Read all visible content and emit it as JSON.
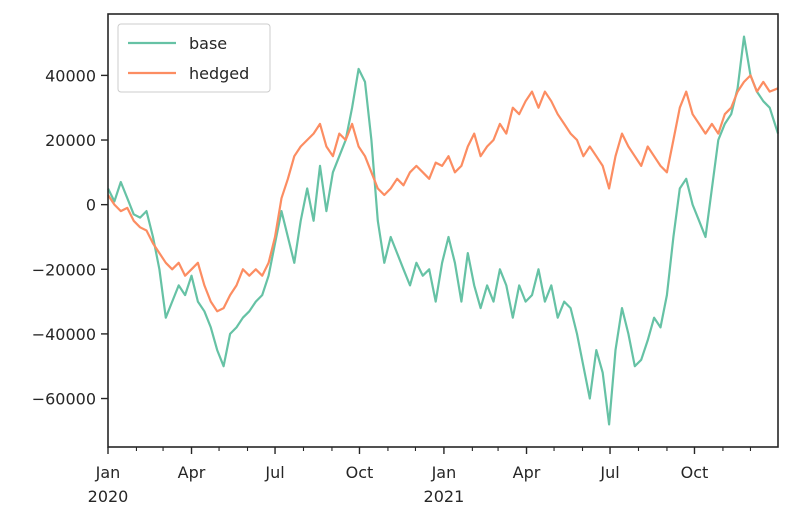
{
  "chart_data": {
    "type": "line",
    "title": "",
    "xlabel": "",
    "ylabel": "",
    "xlim": [
      "2020-01-01",
      "2021-12-31"
    ],
    "ylim": [
      -75000,
      59000
    ],
    "grid": false,
    "legend_position": "top-left",
    "x_ticks": [
      {
        "date": "2020-01-01",
        "label": "Jan",
        "sublabel": "2020"
      },
      {
        "date": "2020-04-01",
        "label": "Apr",
        "sublabel": ""
      },
      {
        "date": "2020-07-01",
        "label": "Jul",
        "sublabel": ""
      },
      {
        "date": "2020-10-01",
        "label": "Oct",
        "sublabel": ""
      },
      {
        "date": "2021-01-01",
        "label": "Jan",
        "sublabel": "2021"
      },
      {
        "date": "2021-04-01",
        "label": "Apr",
        "sublabel": ""
      },
      {
        "date": "2021-07-01",
        "label": "Jul",
        "sublabel": ""
      },
      {
        "date": "2021-10-01",
        "label": "Oct",
        "sublabel": ""
      }
    ],
    "minor_x_ticks": [
      "2020-02-01",
      "2020-03-01",
      "2020-05-01",
      "2020-06-01",
      "2020-08-01",
      "2020-09-01",
      "2020-11-01",
      "2020-12-01",
      "2021-02-01",
      "2021-03-01",
      "2021-05-01",
      "2021-06-01",
      "2021-08-01",
      "2021-09-01",
      "2021-11-01",
      "2021-12-01"
    ],
    "y_ticks": [
      {
        "value": -60000,
        "label": "−60000"
      },
      {
        "value": -40000,
        "label": "−40000"
      },
      {
        "value": -20000,
        "label": "−20000"
      },
      {
        "value": 0,
        "label": "0"
      },
      {
        "value": 20000,
        "label": "20000"
      },
      {
        "value": 40000,
        "label": "40000"
      }
    ],
    "series": [
      {
        "name": "base",
        "color": "#66c2a5",
        "x": [
          "2020-01-01",
          "2020-01-08",
          "2020-01-15",
          "2020-01-22",
          "2020-01-29",
          "2020-02-05",
          "2020-02-12",
          "2020-02-19",
          "2020-02-26",
          "2020-03-04",
          "2020-03-11",
          "2020-03-18",
          "2020-03-25",
          "2020-04-01",
          "2020-04-08",
          "2020-04-15",
          "2020-04-22",
          "2020-04-29",
          "2020-05-06",
          "2020-05-13",
          "2020-05-20",
          "2020-05-27",
          "2020-06-03",
          "2020-06-10",
          "2020-06-17",
          "2020-06-24",
          "2020-07-01",
          "2020-07-08",
          "2020-07-15",
          "2020-07-22",
          "2020-07-29",
          "2020-08-05",
          "2020-08-12",
          "2020-08-19",
          "2020-08-26",
          "2020-09-02",
          "2020-09-09",
          "2020-09-16",
          "2020-09-23",
          "2020-09-30",
          "2020-10-07",
          "2020-10-14",
          "2020-10-21",
          "2020-10-28",
          "2020-11-04",
          "2020-11-11",
          "2020-11-18",
          "2020-11-25",
          "2020-12-02",
          "2020-12-09",
          "2020-12-16",
          "2020-12-23",
          "2020-12-30",
          "2021-01-06",
          "2021-01-13",
          "2021-01-20",
          "2021-01-27",
          "2021-02-03",
          "2021-02-10",
          "2021-02-17",
          "2021-02-24",
          "2021-03-03",
          "2021-03-10",
          "2021-03-17",
          "2021-03-24",
          "2021-03-31",
          "2021-04-07",
          "2021-04-14",
          "2021-04-21",
          "2021-04-28",
          "2021-05-05",
          "2021-05-12",
          "2021-05-19",
          "2021-05-26",
          "2021-06-02",
          "2021-06-09",
          "2021-06-16",
          "2021-06-23",
          "2021-06-30",
          "2021-07-07",
          "2021-07-14",
          "2021-07-21",
          "2021-07-28",
          "2021-08-04",
          "2021-08-11",
          "2021-08-18",
          "2021-08-25",
          "2021-09-01",
          "2021-09-08",
          "2021-09-15",
          "2021-09-22",
          "2021-09-29",
          "2021-10-06",
          "2021-10-13",
          "2021-10-20",
          "2021-10-27",
          "2021-11-03",
          "2021-11-10",
          "2021-11-17",
          "2021-11-24",
          "2021-12-01",
          "2021-12-08",
          "2021-12-15",
          "2021-12-22",
          "2021-12-31"
        ],
        "values": [
          5000,
          1000,
          7000,
          2000,
          -3000,
          -4000,
          -2000,
          -10000,
          -20000,
          -35000,
          -30000,
          -25000,
          -28000,
          -22000,
          -30000,
          -33000,
          -38000,
          -45000,
          -50000,
          -40000,
          -38000,
          -35000,
          -33000,
          -30000,
          -28000,
          -22000,
          -12000,
          -2000,
          -10000,
          -18000,
          -5000,
          5000,
          -5000,
          12000,
          -2000,
          10000,
          15000,
          20000,
          30000,
          42000,
          38000,
          20000,
          -5000,
          -18000,
          -10000,
          -15000,
          -20000,
          -25000,
          -18000,
          -22000,
          -20000,
          -30000,
          -18000,
          -10000,
          -18000,
          -30000,
          -15000,
          -25000,
          -32000,
          -25000,
          -30000,
          -20000,
          -25000,
          -35000,
          -25000,
          -30000,
          -28000,
          -20000,
          -30000,
          -25000,
          -35000,
          -30000,
          -32000,
          -40000,
          -50000,
          -60000,
          -45000,
          -52000,
          -68000,
          -45000,
          -32000,
          -40000,
          -50000,
          -48000,
          -42000,
          -35000,
          -38000,
          -28000,
          -10000,
          5000,
          8000,
          0,
          -5000,
          -10000,
          5000,
          20000,
          25000,
          28000,
          36000,
          52000,
          40000,
          35000,
          32000,
          30000,
          22000
        ]
      },
      {
        "name": "hedged",
        "color": "#fc8d62",
        "x": [
          "2020-01-01",
          "2020-01-08",
          "2020-01-15",
          "2020-01-22",
          "2020-01-29",
          "2020-02-05",
          "2020-02-12",
          "2020-02-19",
          "2020-02-26",
          "2020-03-04",
          "2020-03-11",
          "2020-03-18",
          "2020-03-25",
          "2020-04-01",
          "2020-04-08",
          "2020-04-15",
          "2020-04-22",
          "2020-04-29",
          "2020-05-06",
          "2020-05-13",
          "2020-05-20",
          "2020-05-27",
          "2020-06-03",
          "2020-06-10",
          "2020-06-17",
          "2020-06-24",
          "2020-07-01",
          "2020-07-08",
          "2020-07-15",
          "2020-07-22",
          "2020-07-29",
          "2020-08-05",
          "2020-08-12",
          "2020-08-19",
          "2020-08-26",
          "2020-09-02",
          "2020-09-09",
          "2020-09-16",
          "2020-09-23",
          "2020-09-30",
          "2020-10-07",
          "2020-10-14",
          "2020-10-21",
          "2020-10-28",
          "2020-11-04",
          "2020-11-11",
          "2020-11-18",
          "2020-11-25",
          "2020-12-02",
          "2020-12-09",
          "2020-12-16",
          "2020-12-23",
          "2020-12-30",
          "2021-01-06",
          "2021-01-13",
          "2021-01-20",
          "2021-01-27",
          "2021-02-03",
          "2021-02-10",
          "2021-02-17",
          "2021-02-24",
          "2021-03-03",
          "2021-03-10",
          "2021-03-17",
          "2021-03-24",
          "2021-03-31",
          "2021-04-07",
          "2021-04-14",
          "2021-04-21",
          "2021-04-28",
          "2021-05-05",
          "2021-05-12",
          "2021-05-19",
          "2021-05-26",
          "2021-06-02",
          "2021-06-09",
          "2021-06-16",
          "2021-06-23",
          "2021-06-30",
          "2021-07-07",
          "2021-07-14",
          "2021-07-21",
          "2021-07-28",
          "2021-08-04",
          "2021-08-11",
          "2021-08-18",
          "2021-08-25",
          "2021-09-01",
          "2021-09-08",
          "2021-09-15",
          "2021-09-22",
          "2021-09-29",
          "2021-10-06",
          "2021-10-13",
          "2021-10-20",
          "2021-10-27",
          "2021-11-03",
          "2021-11-10",
          "2021-11-17",
          "2021-11-24",
          "2021-12-01",
          "2021-12-08",
          "2021-12-15",
          "2021-12-22",
          "2021-12-31"
        ],
        "values": [
          3000,
          0,
          -2000,
          -1000,
          -5000,
          -7000,
          -8000,
          -12000,
          -15000,
          -18000,
          -20000,
          -18000,
          -22000,
          -20000,
          -18000,
          -25000,
          -30000,
          -33000,
          -32000,
          -28000,
          -25000,
          -20000,
          -22000,
          -20000,
          -22000,
          -18000,
          -10000,
          2000,
          8000,
          15000,
          18000,
          20000,
          22000,
          25000,
          18000,
          15000,
          22000,
          20000,
          25000,
          18000,
          15000,
          10000,
          5000,
          3000,
          5000,
          8000,
          6000,
          10000,
          12000,
          10000,
          8000,
          13000,
          12000,
          15000,
          10000,
          12000,
          18000,
          22000,
          15000,
          18000,
          20000,
          25000,
          22000,
          30000,
          28000,
          32000,
          35000,
          30000,
          35000,
          32000,
          28000,
          25000,
          22000,
          20000,
          15000,
          18000,
          15000,
          12000,
          5000,
          15000,
          22000,
          18000,
          15000,
          12000,
          18000,
          15000,
          12000,
          10000,
          20000,
          30000,
          35000,
          28000,
          25000,
          22000,
          25000,
          22000,
          28000,
          30000,
          35000,
          38000,
          40000,
          35000,
          38000,
          35000,
          36000
        ]
      }
    ]
  }
}
